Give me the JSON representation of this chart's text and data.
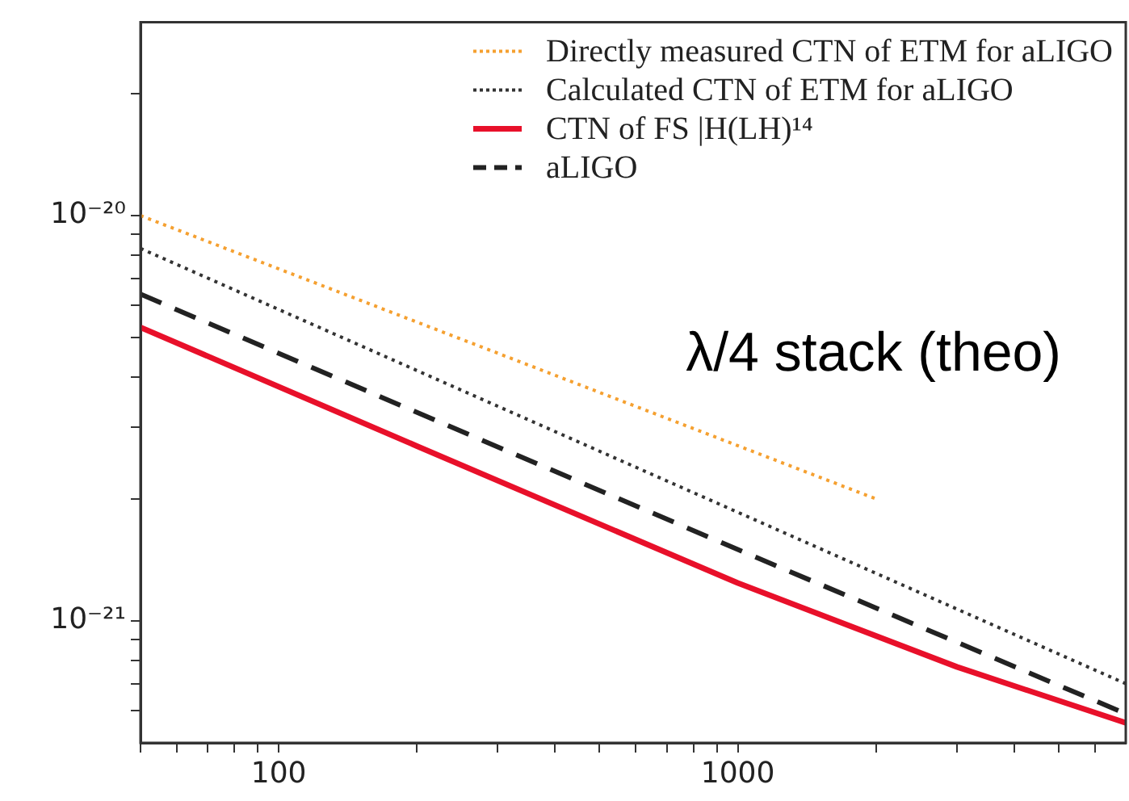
{
  "chart_data": {
    "type": "line",
    "log": "xy",
    "grid": false,
    "legend": "top right",
    "marker": "none",
    "xlim": [
      50,
      7000
    ],
    "ylim": [
      5e-22,
      3e-20
    ],
    "xticks": [
      {
        "value": 50,
        "label": null
      },
      {
        "value": 60,
        "label": null
      },
      {
        "value": 70,
        "label": null
      },
      {
        "value": 80,
        "label": null
      },
      {
        "value": 90,
        "label": null
      },
      100,
      {
        "value": 200,
        "label": null
      },
      {
        "value": 300,
        "label": null
      },
      {
        "value": 400,
        "label": null
      },
      {
        "value": 500,
        "label": null
      },
      {
        "value": 600,
        "label": null
      },
      {
        "value": 700,
        "label": null
      },
      {
        "value": 800,
        "label": null
      },
      {
        "value": 900,
        "label": null
      },
      1000,
      {
        "value": 2000,
        "label": null
      },
      {
        "value": 3000,
        "label": null
      },
      {
        "value": 4000,
        "label": null
      },
      {
        "value": 5000,
        "label": null
      },
      {
        "value": 6000,
        "label": null
      }
    ],
    "yticks": [
      {
        "value": 6e-22,
        "label": null
      },
      {
        "value": 7e-22,
        "label": null
      },
      {
        "value": 8e-22,
        "label": null
      },
      {
        "value": 9e-22,
        "label": null
      },
      {
        "value": 1e-21,
        "label": "10⁻²¹"
      },
      {
        "value": 2e-21,
        "label": null
      },
      {
        "value": 3e-21,
        "label": null
      },
      {
        "value": 4e-21,
        "label": null
      },
      {
        "value": 5e-21,
        "label": null
      },
      {
        "value": 6e-21,
        "label": null
      },
      {
        "value": 7e-21,
        "label": null
      },
      {
        "value": 8e-21,
        "label": null
      },
      {
        "value": 9e-21,
        "label": null
      },
      {
        "value": 1e-20,
        "label": "10⁻²⁰"
      },
      {
        "value": 2e-20,
        "label": null
      }
    ],
    "annotations": [
      "λ/4 stack (theo)"
    ],
    "series": [
      {
        "name": "Directly measured CTN of ETM for aLIGO",
        "color": "#f5a030",
        "line_style": "dotted",
        "x": [
          50,
          2000
        ],
        "values": [
          1e-20,
          2e-21
        ]
      },
      {
        "name": "Calculated CTN of ETM for aLIGO",
        "color": "#333333",
        "line_style": "dotted",
        "x": [
          50,
          7000
        ],
        "values": [
          8.3e-21,
          7e-22
        ]
      },
      {
        "name": "CTN of FS |H(LH)¹⁴",
        "color": "#e8102a",
        "line_style": "solid",
        "x": [
          50,
          200,
          1000,
          3000,
          7000
        ],
        "values": [
          5.3e-21,
          2.7e-21,
          1.24e-21,
          7.7e-22,
          5.6e-22
        ]
      },
      {
        "name": "aLIGO",
        "color": "#222222",
        "line_style": "dashed",
        "x": [
          50,
          1000,
          7000
        ],
        "values": [
          6.4e-21,
          1.5e-21,
          5.9e-22
        ]
      }
    ]
  }
}
